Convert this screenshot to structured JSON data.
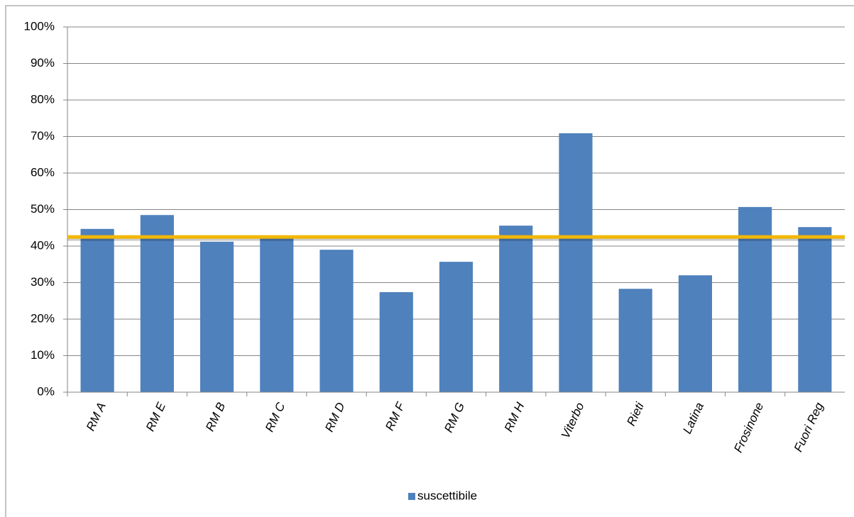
{
  "chart_data": {
    "type": "bar",
    "categories": [
      "RM A",
      "RM E",
      "RM B",
      "RM C",
      "RM D",
      "RM F",
      "RM G",
      "RM H",
      "Viterbo",
      "Rieti",
      "Latina",
      "Frosinone",
      "Fuori Reg"
    ],
    "series": [
      {
        "name": "suscettibile",
        "color": "#4f81bd",
        "values": [
          44.7,
          48.5,
          41.2,
          42.1,
          39.0,
          27.4,
          35.7,
          45.6,
          70.9,
          28.3,
          32.0,
          50.7,
          45.2
        ]
      }
    ],
    "reference_line": {
      "value": 42.5,
      "color": "#f2b705"
    },
    "ylim": [
      0,
      100
    ],
    "yticks": [
      {
        "value": 0,
        "label": "0%"
      },
      {
        "value": 10,
        "label": "10%"
      },
      {
        "value": 20,
        "label": "20%"
      },
      {
        "value": 30,
        "label": "30%"
      },
      {
        "value": 40,
        "label": "40%"
      },
      {
        "value": 50,
        "label": "50%"
      },
      {
        "value": 60,
        "label": "60%"
      },
      {
        "value": 70,
        "label": "70%"
      },
      {
        "value": 80,
        "label": "80%"
      },
      {
        "value": 90,
        "label": "90%"
      },
      {
        "value": 100,
        "label": "100%"
      }
    ],
    "grid": true,
    "legend": "bottom"
  }
}
